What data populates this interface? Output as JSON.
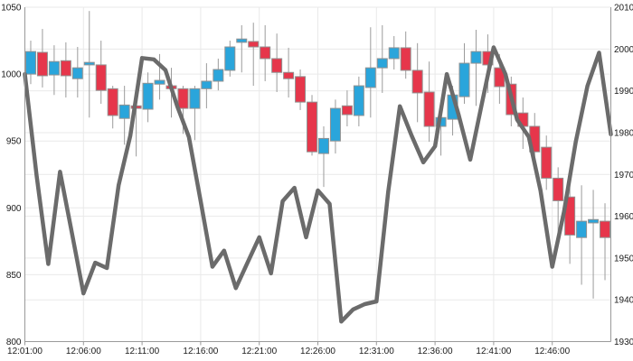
{
  "chart": {
    "background": "#ffffff",
    "colors": {
      "up_body": "#2aa5db",
      "down_body": "#e6364b",
      "body_border": "#919191",
      "wick": "#9b9b9b",
      "line_series": "#6b6b6b",
      "grid": "#e9e9e9",
      "axis": "#9a9a9a",
      "label": "#1a1a1a"
    },
    "left_axis": {
      "min": 800,
      "max": 1050,
      "tick_step": 50,
      "ticks": [
        1050,
        1000,
        950,
        900,
        850,
        800
      ]
    },
    "right_axis": {
      "min": 1930,
      "max": 2010,
      "tick_step": 10,
      "ticks": [
        2010,
        2000,
        1990,
        1980,
        1970,
        1960,
        1950,
        1940,
        1930
      ]
    },
    "x_axis": {
      "minutes_per_label": 5,
      "ticks": [
        "12:01:00",
        "12:06:00",
        "12:11:00",
        "12:16:00",
        "12:21:00",
        "12:26:00",
        "12:31:00",
        "12:36:00",
        "12:41:00",
        "12:46:00"
      ]
    }
  },
  "chart_data": {
    "type": "candlestick",
    "title": "",
    "xlabel": "",
    "legend": "off",
    "grid": "on",
    "x_range": [
      "12:01:00",
      "12:51:00"
    ],
    "left_axis_range": [
      800,
      1050
    ],
    "right_axis_range": [
      1930,
      2010
    ],
    "series": [
      {
        "name": "ohlc-candles",
        "type": "candlestick",
        "axis": "right",
        "up_color": "#2aa5db",
        "down_color": "#e6364b",
        "candles": [
          [
            "12:01:00",
            1994.0,
            2002.0,
            1991.6,
            1999.4
          ],
          [
            "12:02:00",
            1999.2,
            2004.8,
            1990.8,
            1993.6
          ],
          [
            "12:03:00",
            1993.8,
            2000.9,
            1989.0,
            1997.0
          ],
          [
            "12:04:00",
            1997.2,
            2001.6,
            1988.4,
            1993.6
          ],
          [
            "12:05:00",
            1992.9,
            2000.5,
            1988.4,
            1995.5
          ],
          [
            "12:06:00",
            1996.2,
            2009.1,
            1983.6,
            1996.8
          ],
          [
            "12:07:00",
            1996.2,
            2002.0,
            1986.9,
            1990.1
          ],
          [
            "12:08:00",
            1990.5,
            1991.2,
            1981.0,
            1984.1
          ],
          [
            "12:09:00",
            1983.4,
            1991.2,
            1977.1,
            1986.6
          ],
          [
            "12:10:00",
            1986.4,
            1990.1,
            1974.3,
            1985.8
          ],
          [
            "12:11:00",
            1985.6,
            1994.4,
            1982.5,
            1991.8
          ],
          [
            "12:12:00",
            1991.6,
            1998.8,
            1987.9,
            1992.5
          ],
          [
            "12:13:00",
            1991.2,
            1995.5,
            1983.6,
            1990.5
          ],
          [
            "12:14:00",
            1990.5,
            1991.2,
            1979.7,
            1985.8
          ],
          [
            "12:15:00",
            1985.8,
            1991.2,
            1978.2,
            1990.5
          ],
          [
            "12:16:00",
            1990.5,
            1996.6,
            1985.8,
            1992.3
          ],
          [
            "12:17:00",
            1992.3,
            1997.7,
            1990.1,
            1995.1
          ],
          [
            "12:18:00",
            1994.9,
            2002.0,
            1993.4,
            2000.5
          ],
          [
            "12:19:00",
            2001.6,
            2005.7,
            1994.4,
            2002.4
          ],
          [
            "12:20:00",
            2001.8,
            2006.3,
            1991.2,
            2000.5
          ],
          [
            "12:21:00",
            2000.5,
            2005.7,
            1992.3,
            1997.7
          ],
          [
            "12:22:00",
            1997.7,
            2003.7,
            1989.7,
            1994.4
          ],
          [
            "12:23:00",
            1994.4,
            2000.3,
            1988.4,
            1992.9
          ],
          [
            "12:24:00",
            1993.4,
            1995.1,
            1985.4,
            1987.3
          ],
          [
            "12:25:00",
            1987.3,
            1989.0,
            1974.5,
            1975.4
          ],
          [
            "12:26:00",
            1975.0,
            1981.5,
            1967.0,
            1978.6
          ],
          [
            "12:27:00",
            1978.0,
            1987.9,
            1975.0,
            1985.8
          ],
          [
            "12:28:00",
            1986.4,
            1990.1,
            1981.5,
            1984.3
          ],
          [
            "12:29:00",
            1984.1,
            1993.4,
            1981.5,
            1991.2
          ],
          [
            "12:30:00",
            1990.8,
            2005.2,
            1983.6,
            1995.5
          ],
          [
            "12:31:00",
            1995.5,
            2005.7,
            1989.5,
            1997.7
          ],
          [
            "12:32:00",
            1997.7,
            2003.1,
            1995.1,
            2000.3
          ],
          [
            "12:33:00",
            2000.3,
            2004.2,
            1992.9,
            1994.9
          ],
          [
            "12:34:00",
            1994.9,
            2001.4,
            1982.5,
            1989.5
          ],
          [
            "12:35:00",
            1989.7,
            1997.0,
            1977.8,
            1981.5
          ],
          [
            "12:36:00",
            1981.5,
            1985.4,
            1974.5,
            1983.6
          ],
          [
            "12:37:00",
            1983.2,
            1991.2,
            1979.3,
            1989.0
          ],
          [
            "12:38:00",
            1988.6,
            2001.4,
            1986.9,
            1996.6
          ],
          [
            "12:39:00",
            1996.6,
            2004.6,
            1986.4,
            1999.4
          ],
          [
            "12:40:00",
            1999.4,
            2003.5,
            1989.5,
            1996.2
          ],
          [
            "12:41:00",
            1995.5,
            1998.8,
            1986.9,
            1991.0
          ],
          [
            "12:42:00",
            1991.6,
            1993.4,
            1981.5,
            1984.3
          ],
          [
            "12:43:00",
            1984.7,
            1988.4,
            1976.1,
            1981.5
          ],
          [
            "12:44:00",
            1981.5,
            1984.7,
            1971.7,
            1975.4
          ],
          [
            "12:45:00",
            1976.5,
            1979.3,
            1966.3,
            1969.1
          ],
          [
            "12:46:00",
            1969.1,
            1971.7,
            1953.4,
            1963.7
          ],
          [
            "12:47:00",
            1964.6,
            1968.5,
            1948.6,
            1955.5
          ],
          [
            "12:48:00",
            1954.9,
            1967.4,
            1943.6,
            1958.8
          ],
          [
            "12:49:00",
            1958.4,
            1966.3,
            1940.3,
            1959.2
          ],
          [
            "12:50:00",
            1958.8,
            1963.1,
            1944.7,
            1954.9
          ]
        ]
      },
      {
        "name": "gray-line",
        "type": "line",
        "axis": "left",
        "color": "#6b6b6b",
        "stroke_width": 4.5,
        "points": [
          [
            "12:01:00",
            1000
          ],
          [
            "12:02:00",
            924
          ],
          [
            "12:03:00",
            858
          ],
          [
            "12:04:00",
            927
          ],
          [
            "12:05:00",
            882
          ],
          [
            "12:06:00",
            836
          ],
          [
            "12:07:00",
            859
          ],
          [
            "12:08:00",
            855
          ],
          [
            "12:09:00",
            917
          ],
          [
            "12:10:00",
            954
          ],
          [
            "12:11:00",
            1012
          ],
          [
            "12:12:00",
            1011
          ],
          [
            "12:13:00",
            1003
          ],
          [
            "12:14:00",
            976
          ],
          [
            "12:15:00",
            953
          ],
          [
            "12:16:00",
            905
          ],
          [
            "12:17:00",
            856
          ],
          [
            "12:18:00",
            868
          ],
          [
            "12:19:00",
            840
          ],
          [
            "12:20:00",
            859
          ],
          [
            "12:21:00",
            878
          ],
          [
            "12:22:00",
            851
          ],
          [
            "12:23:00",
            905
          ],
          [
            "12:24:00",
            915
          ],
          [
            "12:25:00",
            878
          ],
          [
            "12:26:00",
            913
          ],
          [
            "12:27:00",
            903
          ],
          [
            "12:28:00",
            815
          ],
          [
            "12:29:00",
            824
          ],
          [
            "12:30:00",
            828
          ],
          [
            "12:31:00",
            830
          ],
          [
            "12:32:00",
            912
          ],
          [
            "12:33:00",
            976
          ],
          [
            "12:34:00",
            954
          ],
          [
            "12:35:00",
            934
          ],
          [
            "12:36:00",
            946
          ],
          [
            "12:37:00",
            1000
          ],
          [
            "12:38:00",
            970
          ],
          [
            "12:39:00",
            936
          ],
          [
            "12:40:00",
            978
          ],
          [
            "12:41:00",
            1020
          ],
          [
            "12:42:00",
            1000
          ],
          [
            "12:43:00",
            966
          ],
          [
            "12:44:00",
            953
          ],
          [
            "12:45:00",
            913
          ],
          [
            "12:46:00",
            856
          ],
          [
            "12:47:00",
            897
          ],
          [
            "12:48:00",
            949
          ],
          [
            "12:49:00",
            991
          ],
          [
            "12:50:00",
            1016
          ],
          [
            "12:51:00",
            955
          ]
        ]
      }
    ]
  }
}
